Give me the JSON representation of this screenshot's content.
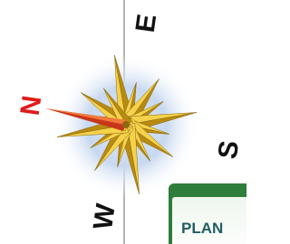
{
  "compass": {
    "north": "N",
    "east": "E",
    "south": "S",
    "west": "W"
  },
  "button": {
    "label": "PLAN"
  }
}
